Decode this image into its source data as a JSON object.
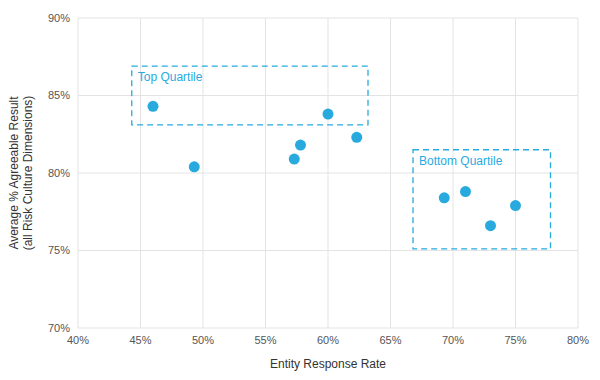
{
  "chart_data": {
    "type": "scatter",
    "xlabel": "Entity Response Rate",
    "ylabel": "Average % Agreeable Result\n(all Risk Culture Dimensions)",
    "x": [
      0.46,
      0.493,
      0.573,
      0.578,
      0.6,
      0.623,
      0.693,
      0.71,
      0.73,
      0.75
    ],
    "values": [
      0.843,
      0.804,
      0.809,
      0.818,
      0.838,
      0.823,
      0.784,
      0.788,
      0.766,
      0.779
    ],
    "color": "#29AADF",
    "xlim": [
      0.4,
      0.8
    ],
    "ylim": [
      0.7,
      0.9
    ],
    "xticks": [
      {
        "value": 0.4,
        "label": "40%"
      },
      {
        "value": 0.45,
        "label": "45%"
      },
      {
        "value": 0.5,
        "label": "50%"
      },
      {
        "value": 0.55,
        "label": "55%"
      },
      {
        "value": 0.6,
        "label": "60%"
      },
      {
        "value": 0.65,
        "label": "65%"
      },
      {
        "value": 0.7,
        "label": "70%"
      },
      {
        "value": 0.75,
        "label": "75%"
      },
      {
        "value": 0.8,
        "label": "80%"
      }
    ],
    "yticks": [
      {
        "value": 0.7,
        "label": "70%"
      },
      {
        "value": 0.75,
        "label": "75%"
      },
      {
        "value": 0.8,
        "label": "80%"
      },
      {
        "value": 0.85,
        "label": "85%"
      },
      {
        "value": 0.9,
        "label": "90%"
      }
    ],
    "grid": true,
    "annotations": [
      {
        "label": "Top Quartile",
        "x0": 0.443,
        "y0": 0.831,
        "x1": 0.632,
        "y1": 0.869
      },
      {
        "label": "Bottom Quartile",
        "x0": 0.668,
        "y0": 0.751,
        "x1": 0.778,
        "y1": 0.815
      }
    ]
  }
}
